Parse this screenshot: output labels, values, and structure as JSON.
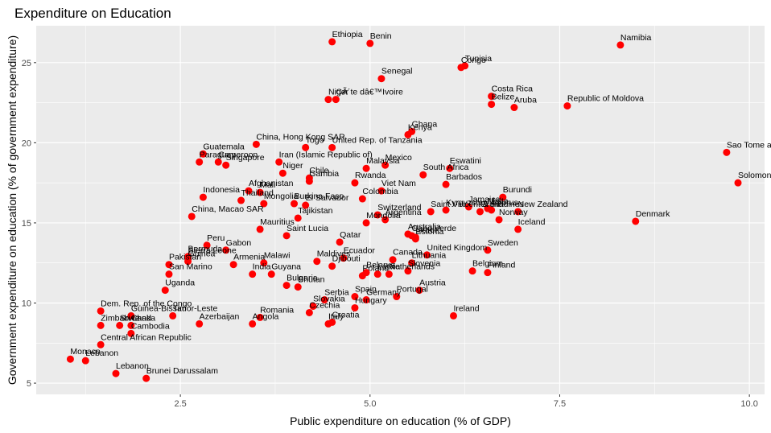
{
  "chart_data": {
    "type": "scatter",
    "title": "Expenditure on Education",
    "xlabel": "Public expenditure on education (% of GDP)",
    "ylabel": "Government expenditure on education (% of government expenditure)",
    "xlim": [
      0.6,
      10.2
    ],
    "ylim": [
      4.3,
      27.3
    ],
    "xticks": [
      2.5,
      5.0,
      7.5,
      10.0
    ],
    "xtick_labels": [
      "2.5",
      "5.0",
      "7.5",
      "10.0"
    ],
    "yticks": [
      5,
      10,
      15,
      20,
      25
    ],
    "ytick_labels": [
      "5",
      "10",
      "15",
      "20",
      "25"
    ],
    "point_color": "#ff0000",
    "panel_color": "#ebebeb",
    "grid": true,
    "points": [
      {
        "label": "Ethiopia",
        "x": 4.5,
        "y": 26.3
      },
      {
        "label": "Benin",
        "x": 5.0,
        "y": 26.2
      },
      {
        "label": "Namibia",
        "x": 8.3,
        "y": 26.1
      },
      {
        "label": "Tunisia",
        "x": 6.25,
        "y": 24.8
      },
      {
        "label": "Congo",
        "x": 6.2,
        "y": 24.7
      },
      {
        "label": "Senegal",
        "x": 5.15,
        "y": 24.0
      },
      {
        "label": "Niger",
        "x": 4.45,
        "y": 22.7
      },
      {
        "label": "CÃ´te dâ€™Ivoire",
        "x": 4.55,
        "y": 22.7
      },
      {
        "label": "Costa Rica",
        "x": 6.6,
        "y": 22.9
      },
      {
        "label": "Belize",
        "x": 6.6,
        "y": 22.4
      },
      {
        "label": "Aruba",
        "x": 6.9,
        "y": 22.2
      },
      {
        "label": "Republic of Moldova",
        "x": 7.6,
        "y": 22.3
      },
      {
        "label": "Ghana",
        "x": 5.55,
        "y": 20.7
      },
      {
        "label": "Kenya",
        "x": 5.5,
        "y": 20.5
      },
      {
        "label": "China, Hong Kong SAR",
        "x": 3.5,
        "y": 19.9
      },
      {
        "label": "Togo",
        "x": 4.15,
        "y": 19.7
      },
      {
        "label": "United Rep. of Tanzania",
        "x": 4.5,
        "y": 19.7
      },
      {
        "label": "Sao Tome and Principe",
        "x": 9.7,
        "y": 19.4
      },
      {
        "label": "Guatemala",
        "x": 2.8,
        "y": 19.3
      },
      {
        "label": "Paraguay",
        "x": 2.75,
        "y": 18.8
      },
      {
        "label": "Cameroon",
        "x": 3.0,
        "y": 18.8
      },
      {
        "label": "Singapore",
        "x": 3.1,
        "y": 18.6
      },
      {
        "label": "Iran (Islamic Republic of)",
        "x": 3.8,
        "y": 18.8
      },
      {
        "label": "Mexico",
        "x": 5.2,
        "y": 18.6
      },
      {
        "label": "Malaysia",
        "x": 4.95,
        "y": 18.4
      },
      {
        "label": "Niger",
        "x": 3.85,
        "y": 18.1
      },
      {
        "label": "Eswatini",
        "x": 6.05,
        "y": 18.4
      },
      {
        "label": "South Africa",
        "x": 5.7,
        "y": 18.0
      },
      {
        "label": "Chile",
        "x": 4.2,
        "y": 17.8
      },
      {
        "label": "Gambia",
        "x": 4.2,
        "y": 17.6
      },
      {
        "label": "Rwanda",
        "x": 4.8,
        "y": 17.5
      },
      {
        "label": "Barbados",
        "x": 6.0,
        "y": 17.4
      },
      {
        "label": "Solomon Islands",
        "x": 9.85,
        "y": 17.5
      },
      {
        "label": "Afghanistan",
        "x": 3.4,
        "y": 17.0
      },
      {
        "label": "Mali",
        "x": 3.55,
        "y": 16.9
      },
      {
        "label": "Viet Nam",
        "x": 5.15,
        "y": 17.0
      },
      {
        "label": "Indonesia",
        "x": 2.8,
        "y": 16.6
      },
      {
        "label": "Burundi",
        "x": 6.75,
        "y": 16.6
      },
      {
        "label": "Thailand",
        "x": 3.3,
        "y": 16.4
      },
      {
        "label": "Mongolia",
        "x": 3.6,
        "y": 16.2
      },
      {
        "label": "Burkina Faso",
        "x": 4.0,
        "y": 16.2
      },
      {
        "label": "El Salvador",
        "x": 4.15,
        "y": 16.1
      },
      {
        "label": "Colombia",
        "x": 4.9,
        "y": 16.5
      },
      {
        "label": "Jamaica",
        "x": 6.3,
        "y": 16.0
      },
      {
        "label": "Malta",
        "x": 6.55,
        "y": 15.9
      },
      {
        "label": "Cyprus",
        "x": 6.6,
        "y": 15.8
      },
      {
        "label": "New Zealand",
        "x": 6.95,
        "y": 15.7
      },
      {
        "label": "Kyrgyzstan",
        "x": 6.0,
        "y": 15.8
      },
      {
        "label": "Grenadines",
        "x": 6.45,
        "y": 15.7
      },
      {
        "label": "Saint Vincent & the",
        "x": 5.8,
        "y": 15.7
      },
      {
        "label": "Tajikistan",
        "x": 4.05,
        "y": 15.3
      },
      {
        "label": "Switzerland",
        "x": 5.1,
        "y": 15.5
      },
      {
        "label": "Argentina",
        "x": 5.2,
        "y": 15.2
      },
      {
        "label": "Norway",
        "x": 6.7,
        "y": 15.2
      },
      {
        "label": "China, Macao SAR",
        "x": 2.65,
        "y": 15.4
      },
      {
        "label": "Mauritius",
        "x": 3.55,
        "y": 14.6
      },
      {
        "label": "Mongolia",
        "x": 4.95,
        "y": 15.0
      },
      {
        "label": "Denmark",
        "x": 8.5,
        "y": 15.1
      },
      {
        "label": "Iceland",
        "x": 6.95,
        "y": 14.6
      },
      {
        "label": "Saint Lucia",
        "x": 3.9,
        "y": 14.2
      },
      {
        "label": "Qatar",
        "x": 4.6,
        "y": 13.8
      },
      {
        "label": "Australia",
        "x": 5.5,
        "y": 14.3
      },
      {
        "label": "Cabo Verde",
        "x": 5.55,
        "y": 14.2
      },
      {
        "label": "Israel",
        "x": 5.6,
        "y": 14.1
      },
      {
        "label": "Estonia",
        "x": 5.6,
        "y": 14.0
      },
      {
        "label": "Peru",
        "x": 2.85,
        "y": 13.6
      },
      {
        "label": "Gabon",
        "x": 3.1,
        "y": 13.3
      },
      {
        "label": "Bermuda",
        "x": 2.6,
        "y": 12.9
      },
      {
        "label": "Sierra Leone",
        "x": 2.6,
        "y": 12.8
      },
      {
        "label": "Guinea",
        "x": 2.6,
        "y": 12.6
      },
      {
        "label": "Sweden",
        "x": 6.55,
        "y": 13.3
      },
      {
        "label": "Ecuador",
        "x": 4.65,
        "y": 12.8
      },
      {
        "label": "United Kingdom",
        "x": 5.75,
        "y": 13.0
      },
      {
        "label": "Lithuania",
        "x": 5.55,
        "y": 12.5
      },
      {
        "label": "Djibouti",
        "x": 4.5,
        "y": 12.3
      },
      {
        "label": "Malawi",
        "x": 3.6,
        "y": 12.5
      },
      {
        "label": "Maldives",
        "x": 4.3,
        "y": 12.6
      },
      {
        "label": "Canada",
        "x": 5.3,
        "y": 12.7
      },
      {
        "label": "Pakistan",
        "x": 2.35,
        "y": 12.4
      },
      {
        "label": "Armenia",
        "x": 3.2,
        "y": 12.4
      },
      {
        "label": "India",
        "x": 3.45,
        "y": 11.8
      },
      {
        "label": "Guyana",
        "x": 3.7,
        "y": 11.8
      },
      {
        "label": "Slovenia",
        "x": 5.5,
        "y": 12.0
      },
      {
        "label": "Belarus",
        "x": 4.95,
        "y": 11.9
      },
      {
        "label": "Latvia",
        "x": 5.1,
        "y": 11.8
      },
      {
        "label": "Netherlands",
        "x": 5.25,
        "y": 11.8
      },
      {
        "label": "Belgium",
        "x": 6.35,
        "y": 12.0
      },
      {
        "label": "Finland",
        "x": 6.55,
        "y": 11.9
      },
      {
        "label": "Poland",
        "x": 4.9,
        "y": 11.7
      },
      {
        "label": "Bulgaria",
        "x": 3.9,
        "y": 11.1
      },
      {
        "label": "Bhutan",
        "x": 4.05,
        "y": 11.0
      },
      {
        "label": "San Marino",
        "x": 2.35,
        "y": 11.8
      },
      {
        "label": "Austria",
        "x": 5.65,
        "y": 10.8
      },
      {
        "label": "Spain",
        "x": 4.8,
        "y": 10.4
      },
      {
        "label": "Portugal",
        "x": 5.35,
        "y": 10.4
      },
      {
        "label": "Germany",
        "x": 4.95,
        "y": 10.2
      },
      {
        "label": "Uganda",
        "x": 2.3,
        "y": 10.8
      },
      {
        "label": "Serbia",
        "x": 4.4,
        "y": 10.2
      },
      {
        "label": "Hungary",
        "x": 4.8,
        "y": 9.7
      },
      {
        "label": "Slovakia",
        "x": 4.25,
        "y": 9.8
      },
      {
        "label": "Dem. Rep. of the Congo",
        "x": 1.45,
        "y": 9.5
      },
      {
        "label": "Guinea-Bissau",
        "x": 1.85,
        "y": 9.2
      },
      {
        "label": "Timor-Leste",
        "x": 2.4,
        "y": 9.2
      },
      {
        "label": "Romania",
        "x": 3.55,
        "y": 9.1
      },
      {
        "label": "Czechia",
        "x": 4.2,
        "y": 9.4
      },
      {
        "label": "Ireland",
        "x": 6.1,
        "y": 9.2
      },
      {
        "label": "Zimbabwe",
        "x": 1.45,
        "y": 8.6
      },
      {
        "label": "Sri Lanka",
        "x": 1.7,
        "y": 8.6
      },
      {
        "label": "Chad",
        "x": 1.85,
        "y": 8.6
      },
      {
        "label": "Azerbaijan",
        "x": 2.75,
        "y": 8.7
      },
      {
        "label": "Angola",
        "x": 3.45,
        "y": 8.7
      },
      {
        "label": "Croatia",
        "x": 4.5,
        "y": 8.8
      },
      {
        "label": "Italy",
        "x": 4.45,
        "y": 8.7
      },
      {
        "label": "Cambodia",
        "x": 1.85,
        "y": 8.1
      },
      {
        "label": "Central African Republic",
        "x": 1.45,
        "y": 7.4
      },
      {
        "label": "Monaco",
        "x": 1.05,
        "y": 6.5
      },
      {
        "label": "Lebanon",
        "x": 1.25,
        "y": 6.4
      },
      {
        "label": "Lebanon",
        "x": 1.65,
        "y": 5.6
      },
      {
        "label": "Brunei Darussalam",
        "x": 2.05,
        "y": 5.3
      }
    ]
  }
}
